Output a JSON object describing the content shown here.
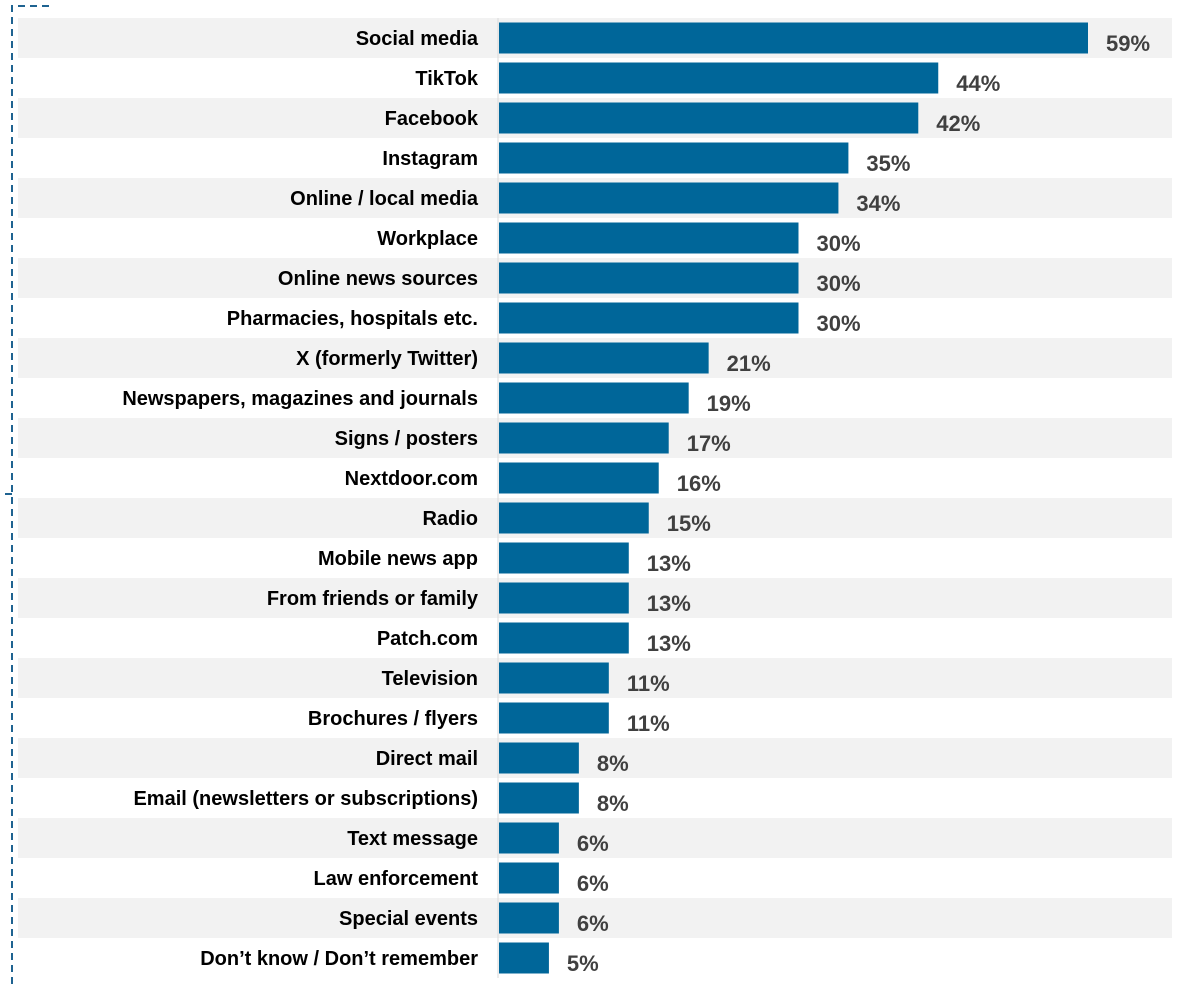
{
  "chart_data": {
    "type": "bar",
    "orientation": "horizontal",
    "categories": [
      "Social media",
      "TikTok",
      "Facebook",
      "Instagram",
      "Online / local media",
      "Workplace",
      "Online news sources",
      "Pharmacies, hospitals etc.",
      "X (formerly Twitter)",
      "Newspapers, magazines and journals",
      "Signs / posters",
      "Nextdoor.com",
      "Radio",
      "Mobile news app",
      "From friends or family",
      "Patch.com",
      "Television",
      "Brochures / flyers",
      "Direct mail",
      "Email (newsletters or subscriptions)",
      "Text message",
      "Law enforcement",
      "Special events",
      "Don’t know / Don’t remember"
    ],
    "values": [
      59,
      44,
      42,
      35,
      34,
      30,
      30,
      30,
      21,
      19,
      17,
      16,
      15,
      13,
      13,
      13,
      11,
      11,
      8,
      8,
      6,
      6,
      6,
      5
    ],
    "value_labels": [
      "59%",
      "44%",
      "42%",
      "35%",
      "34%",
      "30%",
      "30%",
      "30%",
      "21%",
      "19%",
      "17%",
      "16%",
      "15%",
      "13%",
      "13%",
      "13%",
      "11%",
      "11%",
      "8%",
      "8%",
      "6%",
      "6%",
      "6%",
      "5%"
    ],
    "unit": "%",
    "xlim": [
      0,
      59
    ],
    "title": "",
    "xlabel": "",
    "ylabel": "",
    "grid": false,
    "legend": "none",
    "colors": {
      "bar": "#006699",
      "row_band": "#F2F2F2",
      "value_text": "#404040",
      "label_text": "#000000",
      "frame": "#1F6391"
    }
  }
}
